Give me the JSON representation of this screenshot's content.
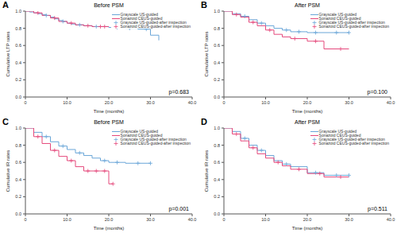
{
  "chart_data": [
    {
      "type": "line",
      "panel": "A",
      "title": "Before PSM",
      "annotation": "p=0.683",
      "x_label": "Time (months)",
      "y_label": "Cumulative LTP rates",
      "xlim": [
        0,
        40
      ],
      "xticks": [
        0,
        {
          "value": 10,
          "label": "10.0"
        },
        {
          "value": 20,
          "label": "20.0"
        },
        {
          "value": 30,
          "label": "30.0"
        },
        {
          "value": 40,
          "label": "40.0"
        }
      ],
      "ylim": [
        0,
        1
      ],
      "yticks": [
        {
          "value": 0,
          "label": "0.0"
        },
        0.2,
        0.4,
        0.6,
        0.8,
        {
          "value": 1,
          "label": "1.0"
        }
      ],
      "grid": false,
      "legend": "upper right",
      "series": [
        {
          "name": "Grayscale US-guided",
          "type": "line",
          "line_style": "step",
          "color": "#6aa6d8",
          "x": [
            0,
            1,
            2,
            3,
            4,
            5,
            6,
            7,
            8,
            9,
            10,
            11,
            12,
            14,
            16,
            18,
            20,
            24,
            27,
            30,
            32
          ],
          "values": [
            1,
            0.99,
            0.98,
            0.97,
            0.96,
            0.95,
            0.93,
            0.91,
            0.89,
            0.88,
            0.86,
            0.85,
            0.84,
            0.83,
            0.82,
            0.82,
            0.81,
            0.8,
            0.79,
            0.72,
            0.66
          ]
        },
        {
          "name": "Sonazoid CEUS-guided",
          "type": "line",
          "line_style": "step",
          "color": "#e5487b",
          "x": [
            0,
            2,
            4,
            6,
            8,
            10,
            12,
            14,
            16,
            20
          ],
          "values": [
            1,
            0.98,
            0.95,
            0.92,
            0.88,
            0.86,
            0.84,
            0.83,
            0.82,
            0.82
          ]
        },
        {
          "name": "Grayscale US-guided-after inspection",
          "type": "scatter",
          "marker": "plus",
          "color": "#6aa6d8",
          "x": [
            5,
            9,
            13,
            17,
            22,
            25,
            29
          ],
          "values": [
            0.95,
            0.88,
            0.84,
            0.82,
            0.81,
            0.8,
            0.79
          ]
        },
        {
          "name": "Sonazoid CEUS-guided-after inspection",
          "type": "scatter",
          "marker": "plus",
          "color": "#e5487b",
          "x": [
            3,
            7,
            11,
            15,
            18,
            19
          ],
          "values": [
            0.98,
            0.92,
            0.86,
            0.83,
            0.82,
            0.82
          ]
        }
      ]
    },
    {
      "type": "line",
      "panel": "B",
      "title": "After PSM",
      "annotation": "p=0.100",
      "x_label": "Time (months)",
      "y_label": "Cumulative LTP rates",
      "xlim": [
        0,
        40
      ],
      "xticks": [
        0,
        {
          "value": 10,
          "label": "10.0"
        },
        {
          "value": 20,
          "label": "20.0"
        },
        {
          "value": 30,
          "label": "30.0"
        },
        {
          "value": 40,
          "label": "40.0"
        }
      ],
      "ylim": [
        0,
        1
      ],
      "yticks": [
        {
          "value": 0,
          "label": "0.0"
        },
        0.2,
        0.4,
        0.6,
        0.8,
        {
          "value": 1,
          "label": "1.0"
        }
      ],
      "grid": false,
      "legend": "upper right",
      "series": [
        {
          "name": "Grayscale US-guided",
          "type": "line",
          "line_style": "step",
          "color": "#6aa6d8",
          "x": [
            0,
            2,
            4,
            6,
            8,
            10,
            12,
            14,
            16,
            20,
            24,
            30
          ],
          "values": [
            1,
            0.97,
            0.94,
            0.9,
            0.86,
            0.83,
            0.8,
            0.78,
            0.76,
            0.75,
            0.75,
            0.75
          ]
        },
        {
          "name": "Sonazoid CEUS-guided",
          "type": "line",
          "line_style": "step",
          "color": "#e5487b",
          "x": [
            0,
            2,
            4,
            6,
            8,
            10,
            12,
            14,
            16,
            20,
            24,
            30
          ],
          "values": [
            1,
            0.96,
            0.93,
            0.87,
            0.83,
            0.78,
            0.73,
            0.7,
            0.68,
            0.65,
            0.56,
            0.56
          ]
        },
        {
          "name": "Grayscale US-guided-after inspection",
          "type": "scatter",
          "marker": "plus",
          "color": "#6aa6d8",
          "x": [
            5,
            9,
            15,
            18,
            22,
            27,
            30
          ],
          "values": [
            0.94,
            0.86,
            0.78,
            0.76,
            0.75,
            0.75,
            0.75
          ]
        },
        {
          "name": "Sonazoid CEUS-guided-after inspection",
          "type": "scatter",
          "marker": "plus",
          "color": "#e5487b",
          "x": [
            3,
            7,
            11,
            17,
            22,
            28
          ],
          "values": [
            0.96,
            0.87,
            0.78,
            0.68,
            0.65,
            0.56
          ]
        }
      ]
    },
    {
      "type": "line",
      "panel": "C",
      "title": "Before PSM",
      "annotation": "p=0.001",
      "x_label": "Time (months)",
      "y_label": "Cumulative IR rates",
      "xlim": [
        0,
        40
      ],
      "xticks": [
        0,
        {
          "value": 10,
          "label": "10.0"
        },
        {
          "value": 20,
          "label": "20.0"
        },
        {
          "value": 30,
          "label": "30.0"
        },
        {
          "value": 40,
          "label": "40.0"
        }
      ],
      "ylim": [
        0,
        1
      ],
      "yticks": [
        {
          "value": 0,
          "label": "0.0"
        },
        0.2,
        0.4,
        0.6,
        0.8,
        {
          "value": 1,
          "label": "1.0"
        }
      ],
      "grid": false,
      "legend": "upper right",
      "series": [
        {
          "name": "Grayscale US-guided",
          "type": "line",
          "line_style": "step",
          "color": "#6aa6d8",
          "x": [
            0,
            2,
            4,
            6,
            8,
            10,
            12,
            14,
            16,
            18,
            20,
            24,
            30
          ],
          "values": [
            1,
            0.95,
            0.9,
            0.84,
            0.79,
            0.75,
            0.71,
            0.68,
            0.65,
            0.62,
            0.6,
            0.59,
            0.59
          ]
        },
        {
          "name": "Sonazoid CEUS-guided",
          "type": "line",
          "line_style": "step",
          "color": "#e5487b",
          "x": [
            0,
            2,
            4,
            6,
            8,
            10,
            12,
            14,
            16,
            18,
            20,
            21
          ],
          "values": [
            1,
            0.9,
            0.82,
            0.74,
            0.67,
            0.62,
            0.55,
            0.5,
            0.5,
            0.5,
            0.35,
            0.35
          ]
        },
        {
          "name": "Grayscale US-guided-after inspection",
          "type": "scatter",
          "marker": "plus",
          "color": "#6aa6d8",
          "x": [
            5,
            9,
            13,
            19,
            22,
            27,
            30
          ],
          "values": [
            0.9,
            0.79,
            0.71,
            0.62,
            0.6,
            0.59,
            0.59
          ]
        },
        {
          "name": "Sonazoid CEUS-guided-after inspection",
          "type": "scatter",
          "marker": "plus",
          "color": "#e5487b",
          "x": [
            3,
            7,
            11,
            15,
            17,
            19,
            21
          ],
          "values": [
            0.9,
            0.74,
            0.62,
            0.5,
            0.5,
            0.5,
            0.35
          ]
        }
      ]
    },
    {
      "type": "line",
      "panel": "D",
      "title": "After PSM",
      "annotation": "p=0.511",
      "x_label": "Time (months)",
      "y_label": "Cumulative IR rates",
      "xlim": [
        0,
        40
      ],
      "xticks": [
        0,
        {
          "value": 10,
          "label": "10.0"
        },
        {
          "value": 20,
          "label": "20.0"
        },
        {
          "value": 30,
          "label": "30.0"
        },
        {
          "value": 40,
          "label": "40.0"
        }
      ],
      "ylim": [
        0,
        1
      ],
      "yticks": [
        {
          "value": 0,
          "label": "0.0"
        },
        0.2,
        0.4,
        0.6,
        0.8,
        {
          "value": 1,
          "label": "1.0"
        }
      ],
      "grid": false,
      "legend": "upper right",
      "series": [
        {
          "name": "Grayscale US-guided",
          "type": "line",
          "line_style": "step",
          "color": "#6aa6d8",
          "x": [
            0,
            2,
            4,
            6,
            8,
            10,
            12,
            14,
            16,
            20,
            24,
            30
          ],
          "values": [
            1,
            0.96,
            0.88,
            0.8,
            0.74,
            0.68,
            0.62,
            0.58,
            0.55,
            0.48,
            0.45,
            0.45
          ]
        },
        {
          "name": "Sonazoid CEUS-guided",
          "type": "line",
          "line_style": "step",
          "color": "#e5487b",
          "x": [
            0,
            2,
            4,
            6,
            8,
            10,
            12,
            14,
            16,
            20,
            24,
            30
          ],
          "values": [
            1,
            0.93,
            0.85,
            0.77,
            0.7,
            0.65,
            0.6,
            0.56,
            0.52,
            0.47,
            0.43,
            0.43
          ]
        },
        {
          "name": "Grayscale US-guided-after inspection",
          "type": "scatter",
          "marker": "plus",
          "color": "#6aa6d8",
          "x": [
            5,
            9,
            15,
            22,
            27,
            30
          ],
          "values": [
            0.88,
            0.74,
            0.58,
            0.48,
            0.45,
            0.45
          ]
        },
        {
          "name": "Sonazoid CEUS-guided-after inspection",
          "type": "scatter",
          "marker": "plus",
          "color": "#e5487b",
          "x": [
            3,
            7,
            13,
            18,
            23,
            28
          ],
          "values": [
            0.93,
            0.77,
            0.6,
            0.52,
            0.47,
            0.43
          ]
        }
      ]
    }
  ]
}
